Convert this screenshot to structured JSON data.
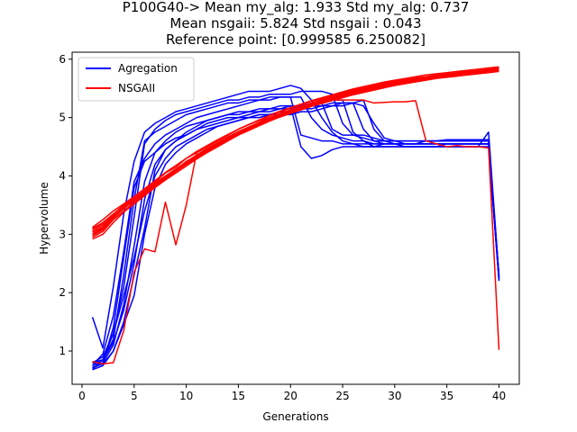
{
  "chart_data": {
    "type": "line",
    "title_lines": [
      "P100G40-> Mean my_alg: 1.933 Std my_alg: 0.737",
      "Mean nsgaii: 5.824 Std nsgaii : 0.043",
      "Reference point: [0.999585 6.250082]"
    ],
    "xlabel": "Generations",
    "ylabel": "Hypervolume",
    "xlim": [
      -0.95,
      41.95
    ],
    "ylim": [
      0.43,
      6.12
    ],
    "xticks": [
      0,
      5,
      10,
      15,
      20,
      25,
      30,
      35,
      40
    ],
    "yticks": [
      1,
      2,
      3,
      4,
      5,
      6
    ],
    "grid": false,
    "legend_position": "top-left",
    "legend": [
      {
        "label": "Agregation",
        "color": "#0000ff"
      },
      {
        "label": "NSGAII",
        "color": "#ff0000"
      }
    ],
    "groups": [
      {
        "name": "Agregation",
        "color": "#0000ff",
        "runs": [
          [
            1.58,
            1.05,
            2.1,
            3.35,
            4.25,
            4.75,
            4.9,
            5.0,
            5.1,
            5.15,
            5.2,
            5.25,
            5.3,
            5.35,
            5.4,
            5.45,
            5.45,
            5.45,
            5.5,
            5.55,
            5.5,
            5.3,
            5.0,
            4.75,
            4.6,
            4.55,
            4.55,
            4.55,
            4.55,
            4.55,
            4.55,
            4.55,
            4.6,
            4.6,
            4.6,
            4.6,
            4.6,
            4.6,
            4.6,
            2.25
          ],
          [
            0.7,
            0.85,
            1.3,
            2.1,
            3.3,
            4.55,
            4.8,
            4.95,
            5.05,
            5.1,
            5.15,
            5.2,
            5.25,
            5.3,
            5.3,
            5.35,
            5.35,
            5.4,
            5.4,
            5.4,
            5.45,
            5.45,
            5.45,
            5.4,
            4.9,
            4.7,
            4.65,
            4.6,
            4.6,
            4.6,
            4.6,
            4.6,
            4.6,
            4.6,
            4.62,
            4.62,
            4.62,
            4.62,
            4.62,
            2.3
          ],
          [
            0.75,
            0.95,
            1.6,
            2.7,
            3.9,
            4.3,
            4.55,
            4.7,
            4.8,
            4.9,
            5.0,
            5.05,
            5.1,
            5.15,
            5.2,
            5.25,
            5.3,
            5.3,
            5.35,
            5.35,
            5.35,
            5.0,
            4.8,
            4.7,
            4.65,
            4.6,
            4.6,
            4.55,
            4.55,
            4.55,
            4.55,
            4.55,
            4.55,
            4.55,
            4.55,
            4.55,
            4.55,
            4.55,
            4.55,
            2.22
          ],
          [
            0.72,
            0.8,
            1.1,
            1.8,
            2.8,
            3.9,
            4.4,
            4.6,
            4.75,
            4.85,
            4.9,
            4.95,
            5.0,
            5.05,
            5.1,
            5.1,
            5.15,
            5.15,
            5.2,
            5.2,
            4.5,
            4.3,
            4.35,
            4.45,
            4.5,
            4.5,
            4.5,
            4.5,
            4.55,
            4.55,
            4.55,
            4.55,
            4.55,
            4.55,
            4.55,
            4.55,
            4.55,
            4.55,
            4.55,
            2.25
          ],
          [
            0.8,
            0.85,
            1.2,
            2.3,
            3.6,
            4.6,
            4.75,
            4.85,
            4.95,
            5.05,
            5.1,
            5.15,
            5.2,
            5.25,
            5.25,
            5.3,
            5.3,
            5.35,
            5.35,
            5.35,
            4.7,
            4.65,
            4.6,
            4.6,
            4.55,
            4.55,
            4.5,
            4.5,
            4.5,
            4.5,
            4.5,
            4.5,
            4.5,
            4.5,
            4.5,
            4.5,
            4.5,
            4.5,
            4.75,
            2.28
          ],
          [
            0.68,
            0.75,
            1.0,
            1.5,
            2.3,
            3.1,
            4.1,
            4.45,
            4.6,
            4.75,
            4.85,
            4.95,
            5.0,
            5.05,
            5.05,
            5.1,
            5.1,
            5.15,
            5.15,
            5.15,
            5.2,
            5.2,
            5.25,
            5.3,
            5.3,
            4.75,
            4.6,
            4.5,
            4.5,
            4.5,
            4.5,
            4.5,
            4.5,
            4.5,
            4.55,
            4.55,
            4.55,
            4.55,
            4.55,
            2.2
          ],
          [
            0.7,
            0.8,
            1.4,
            2.6,
            3.8,
            4.25,
            4.4,
            4.55,
            4.65,
            4.7,
            4.8,
            4.85,
            4.9,
            4.95,
            5.0,
            5.0,
            5.05,
            5.05,
            5.1,
            5.1,
            5.15,
            5.15,
            5.2,
            5.2,
            5.25,
            5.25,
            4.8,
            4.6,
            4.55,
            4.55,
            4.55,
            4.55,
            4.55,
            4.55,
            4.55,
            4.55,
            4.55,
            4.55,
            4.55,
            2.25
          ],
          [
            0.8,
            0.9,
            1.3,
            1.95,
            2.6,
            3.4,
            4.0,
            4.3,
            4.5,
            4.6,
            4.7,
            4.8,
            4.85,
            4.9,
            4.95,
            5.0,
            5.0,
            5.05,
            5.05,
            5.05,
            5.1,
            5.1,
            5.15,
            5.2,
            5.2,
            5.25,
            5.3,
            4.8,
            4.6,
            4.55,
            4.5,
            4.5,
            4.5,
            4.5,
            4.5,
            4.5,
            4.5,
            4.5,
            4.5,
            2.22
          ],
          [
            0.75,
            0.85,
            1.15,
            1.7,
            2.5,
            3.6,
            4.2,
            4.45,
            4.6,
            4.7,
            4.8,
            4.9,
            4.95,
            5.0,
            5.0,
            5.05,
            5.1,
            5.1,
            5.15,
            5.2,
            5.2,
            5.25,
            5.25,
            4.8,
            4.7,
            4.7,
            4.7,
            4.65,
            4.6,
            4.6,
            4.6,
            4.6,
            4.6,
            4.6,
            4.6,
            4.6,
            4.6,
            4.6,
            4.6,
            2.25
          ],
          [
            0.72,
            0.78,
            1.0,
            1.45,
            1.95,
            3.0,
            3.8,
            4.2,
            4.4,
            4.55,
            4.65,
            4.75,
            4.85,
            4.9,
            4.95,
            5.0,
            5.05,
            5.05,
            5.1,
            5.1,
            5.15,
            5.2,
            5.2,
            5.25,
            5.25,
            5.25,
            5.2,
            4.9,
            4.65,
            4.6,
            4.55,
            4.55,
            4.55,
            4.55,
            4.55,
            4.55,
            4.55,
            4.55,
            4.55,
            2.3
          ]
        ]
      },
      {
        "name": "NSGAII",
        "color": "#ff0000",
        "runs": [
          [
            3.1,
            3.2,
            3.35,
            3.5,
            3.62,
            3.75,
            3.9,
            4.05,
            4.15,
            4.3,
            4.4,
            4.5,
            4.6,
            4.7,
            4.8,
            4.88,
            4.96,
            5.03,
            5.1,
            5.16,
            5.22,
            5.28,
            5.33,
            5.38,
            5.43,
            5.47,
            5.51,
            5.55,
            5.59,
            5.62,
            5.65,
            5.68,
            5.7,
            5.73,
            5.75,
            5.77,
            5.79,
            5.81,
            5.83,
            5.85
          ],
          [
            3.0,
            3.1,
            3.3,
            3.45,
            3.6,
            3.7,
            3.85,
            3.98,
            4.1,
            4.25,
            4.35,
            4.45,
            4.55,
            4.65,
            4.75,
            4.83,
            4.91,
            4.98,
            5.05,
            5.12,
            5.18,
            5.24,
            5.3,
            5.35,
            5.4,
            5.45,
            5.49,
            5.53,
            5.57,
            5.6,
            5.63,
            5.66,
            5.69,
            5.71,
            5.73,
            5.75,
            5.77,
            5.79,
            5.8,
            5.82
          ],
          [
            2.95,
            3.05,
            3.25,
            3.4,
            3.55,
            3.68,
            3.82,
            3.95,
            4.08,
            4.2,
            4.32,
            4.42,
            4.52,
            4.62,
            4.72,
            4.8,
            4.88,
            4.95,
            5.02,
            5.08,
            5.14,
            5.2,
            5.26,
            5.31,
            5.36,
            5.41,
            5.45,
            5.49,
            5.53,
            5.57,
            5.6,
            5.63,
            5.66,
            5.69,
            5.71,
            5.73,
            5.75,
            5.77,
            5.79,
            5.81
          ],
          [
            3.05,
            3.15,
            3.3,
            3.48,
            3.62,
            3.74,
            3.88,
            4.0,
            4.12,
            4.24,
            4.36,
            4.47,
            4.57,
            4.67,
            4.76,
            4.84,
            4.92,
            5.0,
            5.07,
            5.13,
            5.19,
            5.25,
            5.31,
            5.36,
            5.41,
            5.46,
            5.5,
            5.54,
            5.58,
            5.61,
            5.64,
            5.67,
            5.7,
            5.72,
            5.74,
            5.76,
            5.78,
            5.8,
            5.82,
            5.84
          ],
          [
            3.12,
            3.25,
            3.4,
            3.52,
            3.65,
            3.78,
            3.92,
            4.06,
            4.18,
            4.3,
            4.42,
            4.52,
            4.62,
            4.71,
            4.8,
            4.88,
            4.96,
            5.04,
            5.11,
            5.17,
            5.23,
            5.29,
            5.34,
            5.39,
            5.44,
            5.49,
            5.53,
            5.57,
            5.61,
            5.64,
            5.67,
            5.7,
            5.73,
            5.75,
            5.77,
            5.79,
            5.81,
            5.83,
            5.85,
            5.87
          ],
          [
            2.92,
            3.0,
            3.2,
            3.38,
            3.52,
            3.66,
            3.8,
            3.93,
            4.05,
            4.17,
            4.29,
            4.4,
            4.5,
            4.6,
            4.7,
            4.78,
            4.86,
            4.94,
            5.01,
            5.07,
            5.13,
            5.19,
            5.24,
            5.29,
            5.34,
            5.39,
            5.43,
            5.47,
            5.51,
            5.55,
            5.58,
            5.61,
            5.64,
            5.67,
            5.69,
            5.71,
            5.73,
            5.75,
            5.77,
            5.79
          ],
          [
            3.08,
            3.18,
            3.32,
            3.46,
            3.6,
            3.72,
            3.86,
            3.99,
            4.11,
            4.23,
            4.34,
            4.44,
            4.54,
            4.64,
            4.73,
            4.81,
            4.89,
            4.97,
            5.04,
            5.1,
            5.16,
            5.22,
            5.28,
            5.33,
            5.38,
            5.43,
            5.47,
            5.51,
            5.55,
            5.58,
            5.62,
            5.65,
            5.68,
            5.7,
            5.72,
            5.74,
            5.76,
            5.78,
            5.8,
            5.82
          ],
          [
            2.98,
            3.08,
            3.28,
            3.44,
            3.58,
            3.7,
            3.84,
            3.96,
            4.08,
            4.2,
            4.31,
            4.42,
            4.52,
            4.62,
            4.72,
            4.8,
            4.88,
            4.96,
            5.03,
            5.1,
            5.16,
            5.22,
            5.27,
            5.32,
            5.37,
            5.42,
            5.46,
            5.5,
            5.54,
            5.58,
            5.61,
            5.64,
            5.67,
            5.7,
            5.72,
            5.74,
            5.76,
            5.78,
            5.8,
            5.83
          ],
          [
            3.03,
            3.12,
            3.3,
            3.46,
            3.58,
            3.72,
            3.86,
            3.98,
            4.1,
            4.22,
            4.33,
            4.43,
            4.53,
            4.63,
            4.73,
            4.81,
            4.89,
            4.97,
            5.04,
            5.11,
            5.17,
            5.23,
            5.29,
            5.34,
            5.39,
            5.44,
            5.48,
            5.52,
            5.56,
            5.6,
            5.63,
            5.66,
            5.69,
            5.71,
            5.74,
            5.76,
            5.78,
            5.8,
            5.82,
            5.84
          ],
          [
            0.82,
            0.78,
            0.8,
            1.35,
            2.35,
            2.75,
            2.7,
            3.55,
            2.82,
            3.5,
            4.4,
            4.5,
            4.6,
            4.7,
            4.8,
            4.88,
            4.95,
            5.0,
            5.05,
            5.12,
            5.18,
            5.24,
            5.28,
            5.3,
            5.3,
            5.3,
            5.3,
            5.25,
            5.26,
            5.27,
            5.27,
            5.29,
            4.6,
            4.55,
            4.5,
            4.52,
            4.5,
            4.5,
            4.48,
            1.02
          ]
        ]
      }
    ]
  }
}
